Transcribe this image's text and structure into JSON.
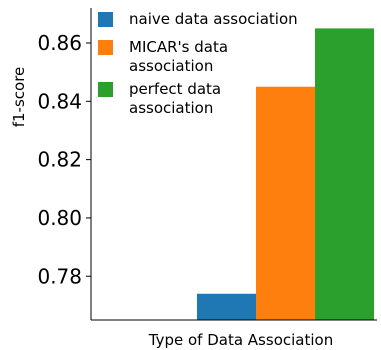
{
  "chart_data": {
    "type": "bar",
    "xlabel": "Type of Data Association",
    "ylabel": "f1-score",
    "ylim": [
      0.765,
      0.872
    ],
    "yticks": [
      "0.78",
      "0.80",
      "0.82",
      "0.84",
      "0.86"
    ],
    "grid": false,
    "legend_position": "top-left",
    "series": [
      {
        "name": "naive data association",
        "name_lines": [
          "naive data association"
        ],
        "value": 0.774,
        "color": "#1f77b4"
      },
      {
        "name": "MICAR's data association",
        "name_lines": [
          "MICAR's data",
          "association"
        ],
        "value": 0.845,
        "color": "#ff7f0e"
      },
      {
        "name": "perfect data association",
        "name_lines": [
          "perfect data",
          "association"
        ],
        "value": 0.865,
        "color": "#2ca02c"
      }
    ]
  }
}
